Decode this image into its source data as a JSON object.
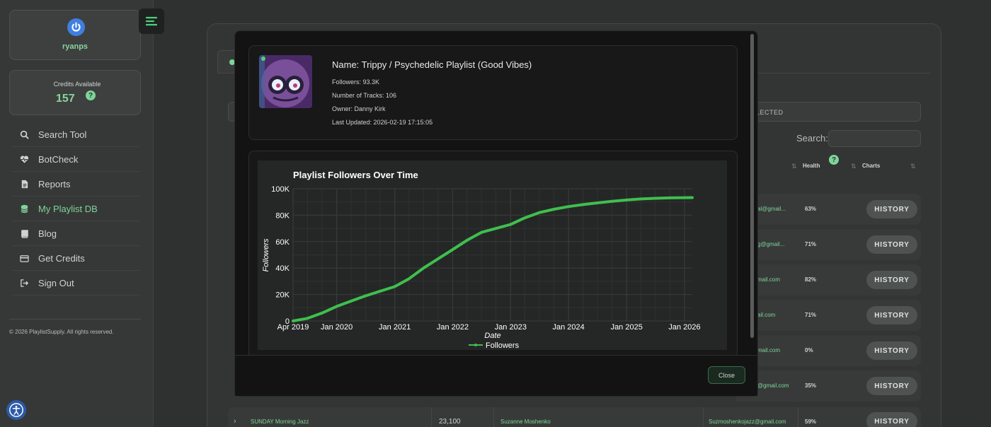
{
  "user": {
    "username": "ryanps"
  },
  "credits": {
    "label": "Credits Available",
    "value": "157",
    "help": "?"
  },
  "nav": {
    "items": [
      {
        "label": "Search Tool",
        "icon": "search-icon"
      },
      {
        "label": "BotCheck",
        "icon": "heart-pulse-icon"
      },
      {
        "label": "Reports",
        "icon": "document-icon"
      },
      {
        "label": "My Playlist DB",
        "icon": "database-icon",
        "active": true
      },
      {
        "label": "Blog",
        "icon": "book-icon"
      },
      {
        "label": "Get Credits",
        "icon": "credit-card-icon"
      },
      {
        "label": "Sign Out",
        "icon": "sign-out-icon"
      }
    ]
  },
  "footer": {
    "copyright": "© 2026 PlaylistSupply. All rights reserved."
  },
  "table": {
    "selected_text": "LECTED",
    "search_label": "Search:",
    "headers": {
      "health": "Health",
      "charts": "Charts"
    },
    "health_help": "?",
    "rows": [
      {
        "email": "al@gmail...",
        "health": "63%",
        "action": "HISTORY"
      },
      {
        "email": "g@gmail...",
        "health": "71%",
        "action": "HISTORY"
      },
      {
        "email": "mail.com",
        "health": "82%",
        "action": "HISTORY"
      },
      {
        "email": "ail.com",
        "health": "71%",
        "action": "HISTORY"
      },
      {
        "email": "mail.com",
        "health": "0%",
        "action": "HISTORY"
      },
      {
        "email": "@gmail.com",
        "health": "35%",
        "action": "HISTORY"
      }
    ],
    "last_row": {
      "name": "SUNDAY Morning Jazz",
      "followers": "23,100",
      "owner": "Suzanne Moshenko",
      "email": "Suzmoshenkojazz@gmail.com",
      "health": "59%",
      "action": "HISTORY"
    }
  },
  "modal": {
    "name_line": "Name: Trippy / Psychedelic Playlist (Good Vibes)",
    "followers_line": "Followers: 93.3K",
    "tracks_line": "Number of Tracks: 106",
    "owner_line": "Owner: Danny Kirk",
    "updated_line": "Last Updated: 2026-02-19 17:15:05",
    "close_label": "Close"
  },
  "chart_data": {
    "type": "line",
    "title": "Playlist Followers Over Time",
    "xlabel": "Date",
    "ylabel": "Followers",
    "x_ticks": [
      "Apr 2019",
      "Jan 2020",
      "Jan 2021",
      "Jan 2022",
      "Jan 2023",
      "Jan 2024",
      "Jan 2025",
      "Jan 2026"
    ],
    "y_ticks": [
      "0",
      "20K",
      "40K",
      "60K",
      "80K",
      "100K"
    ],
    "ylim": [
      0,
      100000
    ],
    "xlim": [
      "2019-04-01",
      "2026-02-19"
    ],
    "grid": true,
    "legend_position": "bottom",
    "color": "#3fbf4f",
    "series": [
      {
        "name": "Followers",
        "x": [
          "2019-04-01",
          "2019-07-01",
          "2019-10-01",
          "2020-01-01",
          "2020-04-01",
          "2020-07-01",
          "2020-10-01",
          "2021-01-01",
          "2021-04-01",
          "2021-07-01",
          "2021-10-01",
          "2022-01-01",
          "2022-04-01",
          "2022-07-01",
          "2022-10-01",
          "2023-01-01",
          "2023-04-01",
          "2023-07-01",
          "2023-10-01",
          "2024-01-01",
          "2024-04-01",
          "2024-07-01",
          "2024-10-01",
          "2025-01-01",
          "2025-04-01",
          "2025-07-01",
          "2025-10-01",
          "2026-02-19"
        ],
        "values": [
          0,
          2000,
          6000,
          11000,
          15000,
          19000,
          22500,
          26000,
          32000,
          40000,
          47000,
          54000,
          61000,
          67000,
          70000,
          73000,
          78000,
          82000,
          84500,
          86500,
          88000,
          89300,
          90500,
          91500,
          92300,
          92800,
          93100,
          93300
        ]
      }
    ]
  }
}
